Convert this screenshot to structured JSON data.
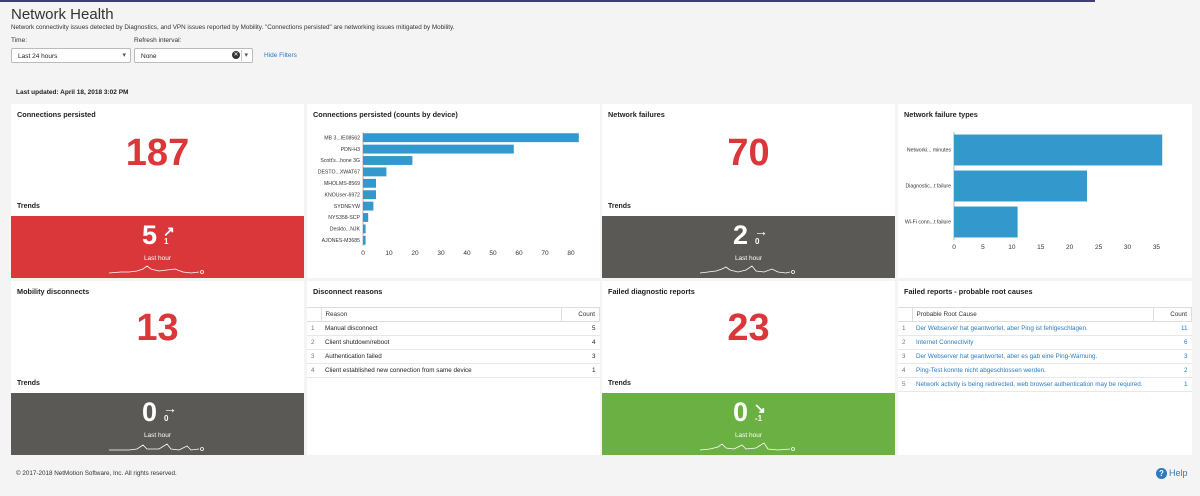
{
  "header": {
    "title": "Network Health",
    "subtitle": "Network connectivity issues detected by Diagnostics, and VPN issues reported by Mobility. \"Connections persisted\" are networking issues mitigated by Mobility."
  },
  "filters": {
    "time_label": "Time:",
    "time_value": "Last 24 hours",
    "refresh_label": "Refresh interval:",
    "refresh_value": "None",
    "hide_filters": "Hide Filters"
  },
  "last_updated": "Last updated: April 18, 2018 3:02 PM",
  "panels": {
    "connections_persisted": {
      "title": "Connections persisted",
      "value": "187",
      "trends_label": "Trends",
      "trend_value": "5",
      "trend_delta": "1",
      "trend_arrow": "↗",
      "trend_period": "Last hour"
    },
    "network_failures": {
      "title": "Network failures",
      "value": "70",
      "trends_label": "Trends",
      "trend_value": "2",
      "trend_delta": "0",
      "trend_arrow": "→",
      "trend_period": "Last hour"
    },
    "mobility_disconnects": {
      "title": "Mobility disconnects",
      "value": "13",
      "trends_label": "Trends",
      "trend_value": "0",
      "trend_delta": "0",
      "trend_arrow": "→",
      "trend_period": "Last hour"
    },
    "failed_diagnostic_reports": {
      "title": "Failed diagnostic reports",
      "value": "23",
      "trends_label": "Trends",
      "trend_value": "0",
      "trend_delta": "-1",
      "trend_arrow": "↘",
      "trend_period": "Last hour"
    },
    "disconnect_reasons": {
      "title": "Disconnect reasons",
      "col_reason": "Reason",
      "col_count": "Count",
      "rows": [
        {
          "n": "1",
          "reason": "Manual disconnect",
          "count": "5"
        },
        {
          "n": "2",
          "reason": "Client shutdown/reboot",
          "count": "4"
        },
        {
          "n": "3",
          "reason": "Authentication failed",
          "count": "3"
        },
        {
          "n": "4",
          "reason": "Client established new connection from same device",
          "count": "1"
        }
      ]
    },
    "root_causes": {
      "title": "Failed reports - probable root causes",
      "col_cause": "Probable Root Cause",
      "col_count": "Count",
      "rows": [
        {
          "n": "1",
          "cause": "Der Webserver hat geantwortet, aber Ping ist fehlgeschlagen.",
          "count": "11"
        },
        {
          "n": "2",
          "cause": "Internet Connectivity",
          "count": "6"
        },
        {
          "n": "3",
          "cause": "Der Webserver hat geantwortet, aber es gab eine Ping-Warnung.",
          "count": "3"
        },
        {
          "n": "4",
          "cause": "Ping-Test konnte nicht abgeschlossen werden.",
          "count": "2"
        },
        {
          "n": "5",
          "cause": "Network activity is being redirected, web browser authentication may be required.",
          "count": "1"
        }
      ]
    }
  },
  "colors": {
    "accent_red": "#d9373a",
    "trend_gray": "#5a5955",
    "trend_green": "#6bb043",
    "bar_blue": "#3399cc",
    "link_blue": "#2a7bc0"
  },
  "chart_data": [
    {
      "type": "bar",
      "orientation": "horizontal",
      "title": "Connections persisted (counts by device)",
      "categories": [
        "MB 3...IE08562",
        "PDN-H3",
        "Scott's...hone 3G",
        "DESTO...XWAT67",
        "MHOLMS-8569",
        "KNOUser-6972",
        "SYDNEYW",
        "NYS358-SCP",
        "Deskto...NJK",
        "AJONES-M3685"
      ],
      "values": [
        83,
        58,
        19,
        9,
        5,
        5,
        4,
        2,
        1,
        1
      ],
      "x_ticks": [
        0,
        10,
        20,
        30,
        40,
        50,
        60,
        70,
        80
      ],
      "xlim": [
        0,
        85
      ]
    },
    {
      "type": "bar",
      "orientation": "horizontal",
      "title": "Network failure types",
      "categories": [
        "Networki... minutes",
        "Diagnostic...t failure",
        "Wi-Fi conn...t failure"
      ],
      "values": [
        36,
        23,
        11
      ],
      "x_ticks": [
        0,
        5,
        10,
        15,
        20,
        25,
        30,
        35
      ],
      "xlim": [
        0,
        37
      ]
    }
  ],
  "footer": {
    "copyright": "© 2017-2018 NetMotion Software, Inc. All rights reserved.",
    "help": "Help"
  }
}
